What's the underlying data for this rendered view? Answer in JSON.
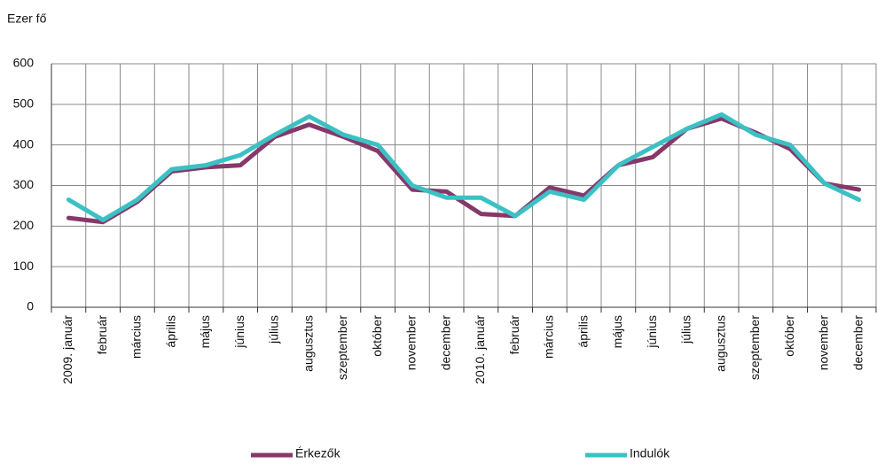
{
  "chart_data": {
    "type": "line",
    "y_label": "Ezer fő",
    "categories": [
      "2009. január",
      "február",
      "március",
      "április",
      "május",
      "június",
      "július",
      "augusztus",
      "szeptember",
      "október",
      "november",
      "december",
      "2010. január",
      "február",
      "március",
      "április",
      "május",
      "június",
      "július",
      "augusztus",
      "szeptember",
      "október",
      "november",
      "december"
    ],
    "series": [
      {
        "name": "Érkezők",
        "color": "#85396a",
        "values": [
          220,
          210,
          260,
          335,
          345,
          350,
          420,
          450,
          420,
          385,
          290,
          285,
          230,
          225,
          295,
          275,
          350,
          370,
          440,
          465,
          430,
          390,
          305,
          290
        ]
      },
      {
        "name": "Indulók",
        "color": "#3bc1c3",
        "values": [
          265,
          215,
          265,
          340,
          350,
          375,
          425,
          470,
          425,
          400,
          300,
          270,
          270,
          225,
          285,
          265,
          350,
          395,
          440,
          475,
          425,
          400,
          305,
          265
        ]
      }
    ],
    "ylim": [
      0,
      600
    ],
    "yticks": [
      0,
      100,
      200,
      300,
      400,
      500,
      600
    ],
    "grid": true,
    "legend": "bottom"
  }
}
